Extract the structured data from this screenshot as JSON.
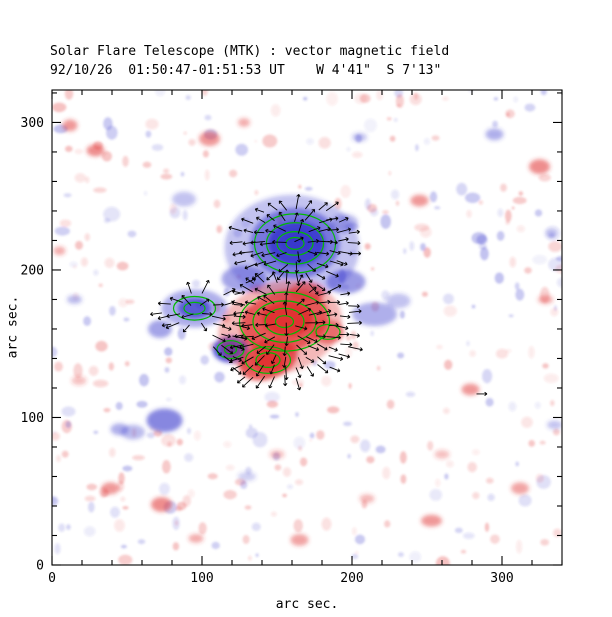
{
  "chart_data": {
    "type": "heatmap",
    "title": "Solar Flare Telescope (MTK) : vector magnetic field",
    "subtitle": "92/10/26  01:50:47-01:51:53 UT    W 4'41\"  S 7'13\"",
    "xlabel": "arc sec.",
    "ylabel": "arc sec.",
    "xlim": [
      0,
      340
    ],
    "ylim": [
      0,
      322
    ],
    "xticks": [
      0,
      100,
      200,
      300
    ],
    "yticks": [
      0,
      100,
      200,
      300
    ],
    "minor_tick_step": 20,
    "grid": false,
    "legend_position": "none",
    "colors": {
      "positive": "#e03030",
      "negative": "#3838cc",
      "contour": "#00bb00",
      "vector": "#000000",
      "background": "#ffffff",
      "frame": "#000000"
    },
    "regions": [
      {
        "x": 160,
        "y": 215,
        "rx": 45,
        "ry": 36,
        "color": "negative",
        "opacity": 0.3
      },
      {
        "x": 162,
        "y": 218,
        "rx": 30,
        "ry": 24,
        "color": "negative",
        "opacity": 0.55
      },
      {
        "x": 163,
        "y": 218,
        "rx": 19,
        "ry": 15,
        "color": "negative",
        "opacity": 0.85
      },
      {
        "x": 164,
        "y": 219,
        "rx": 10,
        "ry": 8,
        "color": "negative",
        "opacity": 0.95
      },
      {
        "x": 196,
        "y": 192,
        "rx": 13,
        "ry": 8,
        "color": "negative",
        "opacity": 0.5
      },
      {
        "x": 215,
        "y": 170,
        "rx": 15,
        "ry": 8,
        "color": "negative",
        "opacity": 0.4
      },
      {
        "x": 231,
        "y": 179,
        "rx": 8,
        "ry": 5,
        "color": "negative",
        "opacity": 0.3
      },
      {
        "x": 128,
        "y": 194,
        "rx": 15,
        "ry": 9,
        "color": "negative",
        "opacity": 0.45
      },
      {
        "x": 95,
        "y": 174,
        "rx": 22,
        "ry": 13,
        "color": "negative",
        "opacity": 0.4
      },
      {
        "x": 95,
        "y": 174,
        "rx": 11,
        "ry": 7,
        "color": "negative",
        "opacity": 0.7
      },
      {
        "x": 72,
        "y": 160,
        "rx": 8,
        "ry": 6,
        "color": "negative",
        "opacity": 0.45
      },
      {
        "x": 119,
        "y": 146,
        "rx": 12,
        "ry": 9,
        "color": "negative",
        "opacity": 0.8
      },
      {
        "x": 119,
        "y": 146,
        "rx": 6,
        "ry": 5,
        "color": "negative",
        "opacity": 0.95
      },
      {
        "x": 75,
        "y": 98,
        "rx": 12,
        "ry": 8,
        "color": "negative",
        "opacity": 0.6
      },
      {
        "x": 54,
        "y": 90,
        "rx": 8,
        "ry": 5,
        "color": "negative",
        "opacity": 0.35
      },
      {
        "x": 195,
        "y": 232,
        "rx": 9,
        "ry": 6,
        "color": "negative",
        "opacity": 0.35
      },
      {
        "x": 152,
        "y": 161,
        "rx": 42,
        "ry": 31,
        "color": "positive",
        "opacity": 0.35,
        "rot": -15
      },
      {
        "x": 155,
        "y": 165,
        "rx": 30,
        "ry": 21,
        "color": "positive",
        "opacity": 0.7,
        "rot": -15
      },
      {
        "x": 157,
        "y": 167,
        "rx": 17,
        "ry": 12,
        "color": "positive",
        "opacity": 0.95
      },
      {
        "x": 144,
        "y": 139,
        "rx": 20,
        "ry": 13,
        "color": "positive",
        "opacity": 0.75,
        "rot": -20
      },
      {
        "x": 145,
        "y": 138,
        "rx": 10,
        "ry": 7,
        "color": "positive",
        "opacity": 0.95
      },
      {
        "x": 184,
        "y": 158,
        "rx": 11,
        "ry": 8,
        "color": "positive",
        "opacity": 0.55
      },
      {
        "x": 170,
        "y": 185,
        "rx": 12,
        "ry": 7,
        "color": "positive",
        "opacity": 0.5
      },
      {
        "x": 12,
        "y": 298,
        "rx": 5,
        "ry": 4,
        "color": "positive",
        "opacity": 0.5
      },
      {
        "x": 29,
        "y": 281,
        "rx": 6,
        "ry": 4,
        "color": "positive",
        "opacity": 0.55
      },
      {
        "x": 105,
        "y": 289,
        "rx": 7,
        "ry": 5,
        "color": "positive",
        "opacity": 0.5
      },
      {
        "x": 128,
        "y": 300,
        "rx": 4,
        "ry": 3,
        "color": "positive",
        "opacity": 0.4
      },
      {
        "x": 245,
        "y": 247,
        "rx": 6,
        "ry": 4,
        "color": "positive",
        "opacity": 0.5
      },
      {
        "x": 325,
        "y": 270,
        "rx": 7,
        "ry": 5,
        "color": "positive",
        "opacity": 0.55
      },
      {
        "x": 279,
        "y": 119,
        "rx": 6,
        "ry": 4,
        "color": "positive",
        "opacity": 0.5
      },
      {
        "x": 329,
        "y": 180,
        "rx": 5,
        "ry": 3,
        "color": "positive",
        "opacity": 0.4
      },
      {
        "x": 39,
        "y": 52,
        "rx": 6,
        "ry": 4,
        "color": "positive",
        "opacity": 0.5
      },
      {
        "x": 73,
        "y": 41,
        "rx": 7,
        "ry": 5,
        "color": "positive",
        "opacity": 0.55
      },
      {
        "x": 96,
        "y": 18,
        "rx": 5,
        "ry": 3,
        "color": "positive",
        "opacity": 0.4
      },
      {
        "x": 165,
        "y": 17,
        "rx": 6,
        "ry": 4,
        "color": "positive",
        "opacity": 0.45
      },
      {
        "x": 253,
        "y": 30,
        "rx": 7,
        "ry": 4,
        "color": "positive",
        "opacity": 0.5
      },
      {
        "x": 312,
        "y": 52,
        "rx": 6,
        "ry": 4,
        "color": "positive",
        "opacity": 0.45
      },
      {
        "x": 5,
        "y": 213,
        "rx": 4,
        "ry": 3,
        "color": "positive",
        "opacity": 0.4
      },
      {
        "x": 18,
        "y": 125,
        "rx": 5,
        "ry": 3,
        "color": "positive",
        "opacity": 0.3
      },
      {
        "x": 260,
        "y": 75,
        "rx": 5,
        "ry": 3,
        "color": "positive",
        "opacity": 0.3
      },
      {
        "x": 210,
        "y": 45,
        "rx": 5,
        "ry": 3,
        "color": "positive",
        "opacity": 0.35
      },
      {
        "x": 150,
        "y": 75,
        "rx": 5,
        "ry": 3,
        "color": "positive",
        "opacity": 0.3
      },
      {
        "x": 295,
        "y": 292,
        "rx": 6,
        "ry": 4,
        "color": "negative",
        "opacity": 0.4
      },
      {
        "x": 15,
        "y": 180,
        "rx": 5,
        "ry": 3,
        "color": "negative",
        "opacity": 0.35
      },
      {
        "x": 45,
        "y": 92,
        "rx": 6,
        "ry": 4,
        "color": "negative",
        "opacity": 0.4
      },
      {
        "x": 335,
        "y": 95,
        "rx": 5,
        "ry": 3,
        "color": "negative",
        "opacity": 0.3
      },
      {
        "x": 333,
        "y": 225,
        "rx": 4,
        "ry": 3,
        "color": "negative",
        "opacity": 0.3
      },
      {
        "x": 130,
        "y": 60,
        "rx": 6,
        "ry": 3,
        "color": "negative",
        "opacity": 0.25
      },
      {
        "x": 88,
        "y": 248,
        "rx": 8,
        "ry": 5,
        "color": "negative",
        "opacity": 0.3
      },
      {
        "x": 205,
        "y": 290,
        "rx": 5,
        "ry": 3,
        "color": "negative",
        "opacity": 0.3
      }
    ],
    "contours": [
      {
        "x": 162,
        "y": 218,
        "levels": [
          [
            27,
            20
          ],
          [
            19,
            14
          ],
          [
            12,
            8
          ],
          [
            6,
            4
          ]
        ]
      },
      {
        "x": 155,
        "y": 165,
        "levels": [
          [
            30,
            20
          ],
          [
            21,
            14
          ],
          [
            13,
            9
          ],
          [
            6,
            4
          ]
        ]
      },
      {
        "x": 144,
        "y": 139,
        "levels": [
          [
            15,
            9
          ],
          [
            8,
            5
          ]
        ]
      },
      {
        "x": 95,
        "y": 174,
        "levels": [
          [
            14,
            8
          ],
          [
            7,
            4
          ]
        ]
      },
      {
        "x": 119,
        "y": 146,
        "levels": [
          [
            9,
            6
          ],
          [
            4,
            3
          ]
        ]
      },
      {
        "x": 184,
        "y": 158,
        "levels": [
          [
            8,
            5
          ]
        ]
      }
    ],
    "vector_field": {
      "spacing": 7,
      "length": 8,
      "jitter_deg": 22,
      "seed": 42,
      "centers": [
        [
          156,
          166
        ],
        [
          162,
          218
        ],
        [
          96,
          172
        ]
      ],
      "regions": [
        {
          "cx": 153,
          "cy": 162,
          "rx": 50,
          "ry": 36
        },
        {
          "cx": 162,
          "cy": 218,
          "rx": 40,
          "ry": 27
        },
        {
          "cx": 97,
          "cy": 172,
          "rx": 26,
          "ry": 13
        },
        {
          "cx": 144,
          "cy": 138,
          "rx": 24,
          "ry": 14
        }
      ]
    },
    "reference_vector": {
      "x": 283,
      "y": 116,
      "length": 7
    },
    "speckle": {
      "count": 380,
      "seed": 12345,
      "min_r": 1.5,
      "max_r": 5,
      "red_fraction": 0.58,
      "min_alpha": 0.07,
      "max_alpha": 0.3
    }
  }
}
